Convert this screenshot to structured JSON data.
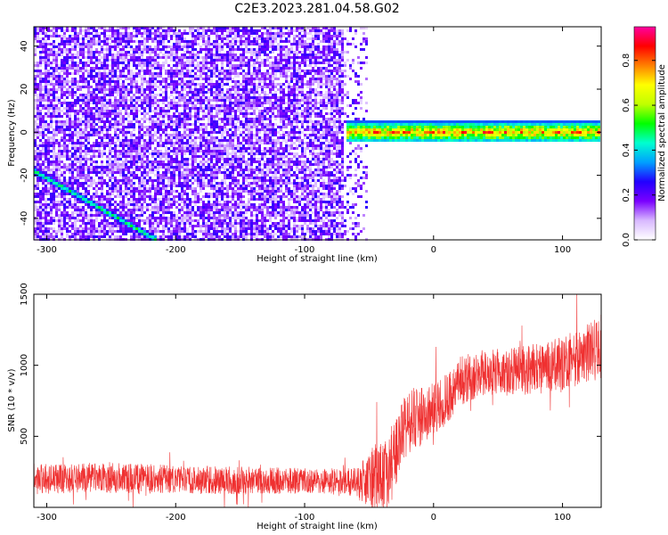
{
  "title": "C2E3.2023.281.04.58.G02",
  "chart_data": [
    {
      "type": "heatmap",
      "xlabel": "Height of straight line (km)",
      "ylabel": "Frequency (Hz)",
      "xlim": [
        -310,
        130
      ],
      "ylim": [
        -50,
        49
      ],
      "xticks": [
        -300,
        -200,
        -100,
        0,
        100
      ],
      "yticks": [
        -40,
        -20,
        0,
        20,
        40
      ],
      "grid": false,
      "colorbar": {
        "label": "Normalized spectral amplitude",
        "range": [
          0,
          0.95
        ],
        "ticks": [
          0.0,
          0.2,
          0.4,
          0.6,
          0.8
        ],
        "colors": [
          "#ffffff",
          "#d8b8ff",
          "#7a00ff",
          "#2200ff",
          "#00a0ff",
          "#00ffd0",
          "#00ff00",
          "#c0ff00",
          "#ffff00",
          "#ff8000",
          "#ff0000",
          "#ff00a0"
        ]
      },
      "noise_region": {
        "x": [
          -310,
          -50
        ],
        "frequency": [
          -50,
          49
        ],
        "amplitude": [
          0.05,
          0.25
        ]
      },
      "features": [
        {
          "name": "descending trace",
          "x": [
            -310,
            -215
          ],
          "frequency": [
            -18,
            -50
          ],
          "amplitude": 0.45
        },
        {
          "name": "signal band",
          "x": [
            -68,
            130
          ],
          "frequency": [
            -5,
            5
          ],
          "center_frequency": 0,
          "amplitude": [
            0.3,
            0.9
          ]
        }
      ]
    },
    {
      "type": "line",
      "xlabel": "Height of straight line (km)",
      "ylabel": "SNR (10 * v/v)",
      "xlim": [
        -310,
        130
      ],
      "ylim": [
        0,
        1500
      ],
      "xticks": [
        -300,
        -200,
        -100,
        0,
        100
      ],
      "yticks": [
        500,
        1000,
        1500
      ],
      "grid": false,
      "series": [
        {
          "color": "#ef3030",
          "x": [
            -310,
            -250,
            -200,
            -150,
            -100,
            -60,
            -45,
            -40,
            -35,
            -30,
            -25,
            -20,
            -10,
            0,
            10,
            20,
            30,
            50,
            80,
            100,
            120,
            130
          ],
          "mean": [
            200,
            210,
            195,
            190,
            185,
            180,
            200,
            230,
            240,
            380,
            480,
            600,
            640,
            680,
            760,
            880,
            930,
            950,
            975,
            1010,
            1080,
            1150
          ],
          "spread": [
            110,
            110,
            100,
            100,
            90,
            100,
            250,
            250,
            270,
            260,
            250,
            230,
            220,
            200,
            180,
            180,
            170,
            170,
            180,
            190,
            220,
            240
          ]
        }
      ]
    }
  ]
}
